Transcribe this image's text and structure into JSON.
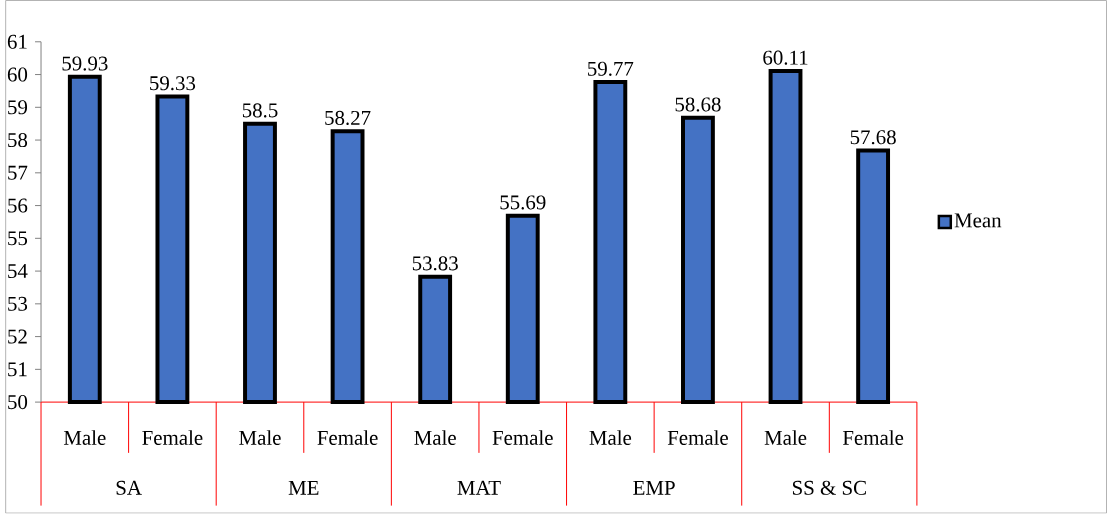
{
  "chart_data": {
    "type": "bar",
    "categories": [
      "Male",
      "Female",
      "Male",
      "Female",
      "Male",
      "Female",
      "Male",
      "Female",
      "Male",
      "Female"
    ],
    "series": [
      {
        "name": "Mean",
        "color": "#4472c4",
        "values": [
          59.93,
          59.33,
          58.5,
          58.27,
          53.83,
          55.69,
          59.77,
          58.68,
          60.11,
          57.68
        ]
      }
    ],
    "annotations": [
      "SA",
      "ME",
      "MAT",
      "EMP",
      "SS & SC"
    ],
    "ylim": [
      50,
      61
    ],
    "yticks": [
      50,
      51,
      52,
      53,
      54,
      55,
      56,
      57,
      58,
      59,
      60,
      61
    ],
    "data_labels": true,
    "grid": false,
    "legend": "right"
  }
}
